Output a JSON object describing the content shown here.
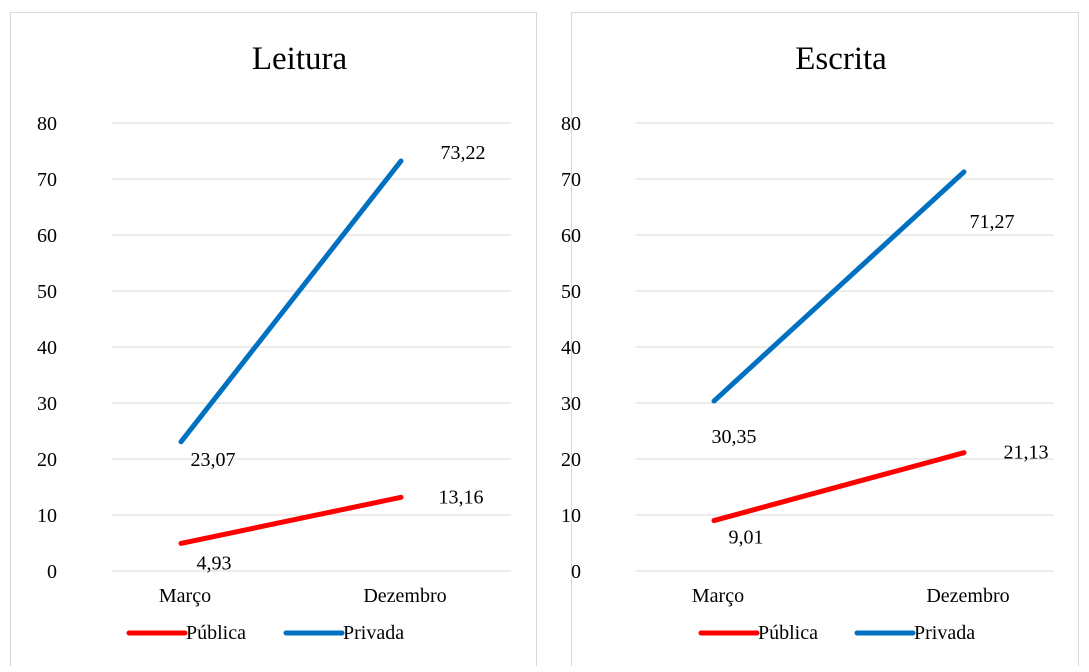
{
  "chart_data": [
    {
      "type": "line",
      "title": "Leitura",
      "categories": [
        "Março",
        "Dezembro"
      ],
      "ylim": [
        0,
        80
      ],
      "yticks": [
        0,
        10,
        20,
        30,
        40,
        50,
        60,
        70,
        80
      ],
      "grid": true,
      "legend": "bottom",
      "series": [
        {
          "name": "Pública",
          "color": "#ff0000",
          "values": [
            4.93,
            13.16
          ],
          "labels": [
            "4,93",
            "13,16"
          ]
        },
        {
          "name": "Privada",
          "color": "#0070c0",
          "values": [
            23.07,
            73.22
          ],
          "labels": [
            "23,07",
            "73,22"
          ]
        }
      ]
    },
    {
      "type": "line",
      "title": "Escrita",
      "categories": [
        "Março",
        "Dezembro"
      ],
      "ylim": [
        0,
        80
      ],
      "yticks": [
        0,
        10,
        20,
        30,
        40,
        50,
        60,
        70,
        80
      ],
      "grid": true,
      "legend": "bottom",
      "series": [
        {
          "name": "Pública",
          "color": "#ff0000",
          "values": [
            9.01,
            21.13
          ],
          "labels": [
            "9,01",
            "21,13"
          ]
        },
        {
          "name": "Privada",
          "color": "#0070c0",
          "values": [
            30.35,
            71.27
          ],
          "labels": [
            "30,35",
            "71,27"
          ]
        }
      ]
    }
  ]
}
